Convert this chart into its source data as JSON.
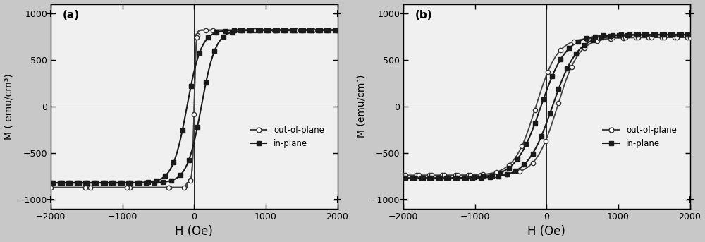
{
  "panel_a_label": "(a)",
  "panel_b_label": "(b)",
  "xlabel": "H (Oe)",
  "ylabel": "M ( emu/cm³)",
  "ylabel_b": "M (emu/cm³)",
  "xlim": [
    -2000,
    2000
  ],
  "ylim": [
    -1100,
    1100
  ],
  "xticks": [
    -2000,
    -1000,
    0,
    1000,
    2000
  ],
  "yticks": [
    -1000,
    -500,
    0,
    500,
    1000
  ],
  "legend_oop": "out-of-plane",
  "legend_ip": "in-plane",
  "bg_color": "#f0f0f0",
  "fig_color": "#c8c8c8",
  "line_color_ip": "#1a1a1a",
  "line_color_oop": "#444444",
  "marker_oop_face": "white",
  "marker_oop_edge": "#333333",
  "marker_ip_face": "#1a1a1a",
  "marker_ip_edge": "#1a1a1a"
}
